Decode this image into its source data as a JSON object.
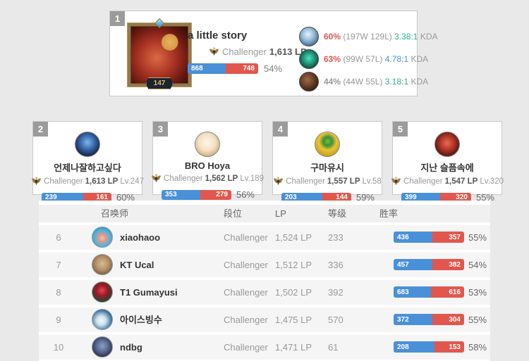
{
  "colors": {
    "win_blue": "#4a90d9",
    "loss_red": "#e2574d",
    "kda_teal": "#2eb394",
    "kda_blue": "#4a90d9",
    "winrate_red": "#e2574d",
    "muted_gray": "#999999"
  },
  "top_player": {
    "rank": "1",
    "name": "a little story",
    "level": "147",
    "tier": "Challenger",
    "lp": "1,613 LP",
    "wins": "868",
    "losses": "748",
    "winrate": "54%",
    "win_pct": 53.7,
    "champions": [
      {
        "winrate": "60%",
        "winrate_color": "#e2574d",
        "record": "(197W 129L)",
        "kda": "3.38:1",
        "kda_color": "#2eb394",
        "kda_label": "KDA"
      },
      {
        "winrate": "63%",
        "winrate_color": "#e2574d",
        "record": "(99W 57L)",
        "kda": "4.78:1",
        "kda_color": "#4a90d9",
        "kda_label": "KDA"
      },
      {
        "winrate": "44%",
        "winrate_color": "#999999",
        "record": "(44W 55L)",
        "kda": "3.18:1",
        "kda_color": "#2eb394",
        "kda_label": "KDA"
      }
    ]
  },
  "cards": [
    {
      "rank": "2",
      "name": "언제나잘하고싶다",
      "tier": "Challenger",
      "lp": "1,613 LP",
      "level": "Lv.247",
      "wins": "239",
      "losses": "161",
      "winrate": "60%",
      "win_pct": 59.8
    },
    {
      "rank": "3",
      "name": "BRO Hoya",
      "tier": "Challenger",
      "lp": "1,562 LP",
      "level": "Lv.189",
      "wins": "353",
      "losses": "279",
      "winrate": "56%",
      "win_pct": 55.9
    },
    {
      "rank": "4",
      "name": "구마유시",
      "tier": "Challenger",
      "lp": "1,557 LP",
      "level": "Lv.58",
      "wins": "203",
      "losses": "144",
      "winrate": "59%",
      "win_pct": 58.5
    },
    {
      "rank": "5",
      "name": "지난 슬픔속에",
      "tier": "Challenger",
      "lp": "1,547 LP",
      "level": "Lv.320",
      "wins": "399",
      "losses": "320",
      "winrate": "55%",
      "win_pct": 55.5
    }
  ],
  "table": {
    "headers": [
      "召唤师",
      "段位",
      "LP",
      "等级",
      "胜率"
    ],
    "rows": [
      {
        "rank": "6",
        "name": "xiaohaoo",
        "tier": "Challenger",
        "lp": "1,524 LP",
        "level": "233",
        "wins": "436",
        "losses": "357",
        "winrate": "55%",
        "win_pct": 55.0
      },
      {
        "rank": "7",
        "name": "KT Ucal",
        "tier": "Challenger",
        "lp": "1,512 LP",
        "level": "336",
        "wins": "457",
        "losses": "382",
        "winrate": "54%",
        "win_pct": 54.5
      },
      {
        "rank": "8",
        "name": "T1 Gumayusi",
        "tier": "Challenger",
        "lp": "1,502 LP",
        "level": "392",
        "wins": "683",
        "losses": "616",
        "winrate": "53%",
        "win_pct": 52.6
      },
      {
        "rank": "9",
        "name": "아이스빙수",
        "tier": "Challenger",
        "lp": "1,475 LP",
        "level": "570",
        "wins": "372",
        "losses": "304",
        "winrate": "55%",
        "win_pct": 55.0
      },
      {
        "rank": "10",
        "name": "ndbg",
        "tier": "Challenger",
        "lp": "1,471 LP",
        "level": "61",
        "wins": "208",
        "losses": "153",
        "winrate": "58%",
        "win_pct": 57.6
      }
    ]
  }
}
